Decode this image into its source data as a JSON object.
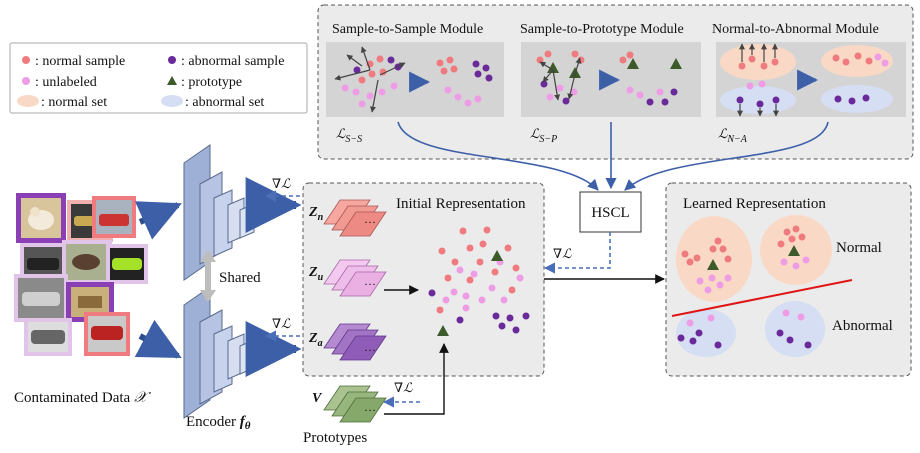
{
  "legend": {
    "normal_sample": ": normal sample",
    "unlabeled": ": unlabeled",
    "normal_set": ": normal set",
    "abnormal_sample": ": abnormal sample",
    "prototype": ": prototype",
    "abnormal_set": ": abnormal set"
  },
  "modules": {
    "s2s": "Sample-to-Sample Module",
    "s2p": "Sample-to-Prototype Module",
    "n2a": "Normal-to-Abnormal Module",
    "loss_ss": "ℒ",
    "loss_ss_sub": "S−S",
    "loss_sp": "ℒ",
    "loss_sp_sub": "S−P",
    "loss_na": "ℒ",
    "loss_na_sub": "N−A"
  },
  "hscl": "HSCL",
  "initial_representation": "Initial Representation",
  "learned_representation": "Learned Representation",
  "normal_label": "Normal",
  "abnormal_label": "Abnormal",
  "shared_label": "Shared",
  "encoder": {
    "text": "Encoder ",
    "sym": "f",
    "sub": "θ"
  },
  "contaminated": {
    "text": "Contaminated Data ",
    "sym": "𝒳"
  },
  "prototypes_label": "Prototypes",
  "grad": "∇ℒ",
  "z_n": {
    "z": "Z",
    "s": "n"
  },
  "z_u": {
    "z": "Z",
    "s": "u"
  },
  "z_a": {
    "z": "Z",
    "s": "a"
  },
  "v": "V",
  "ellipsis": "···",
  "colors": {
    "normal": "#f07b7f",
    "unlabeled": "#ef9ce6",
    "abnormal": "#6a2a9a",
    "prototype": "#3c5a2a",
    "normal_set": "#f9d9c6",
    "abnormal_set": "#d5def3",
    "panel": "#ebebeb",
    "arrow_blue": "#3d5fa8",
    "red_line": "#e01515"
  }
}
